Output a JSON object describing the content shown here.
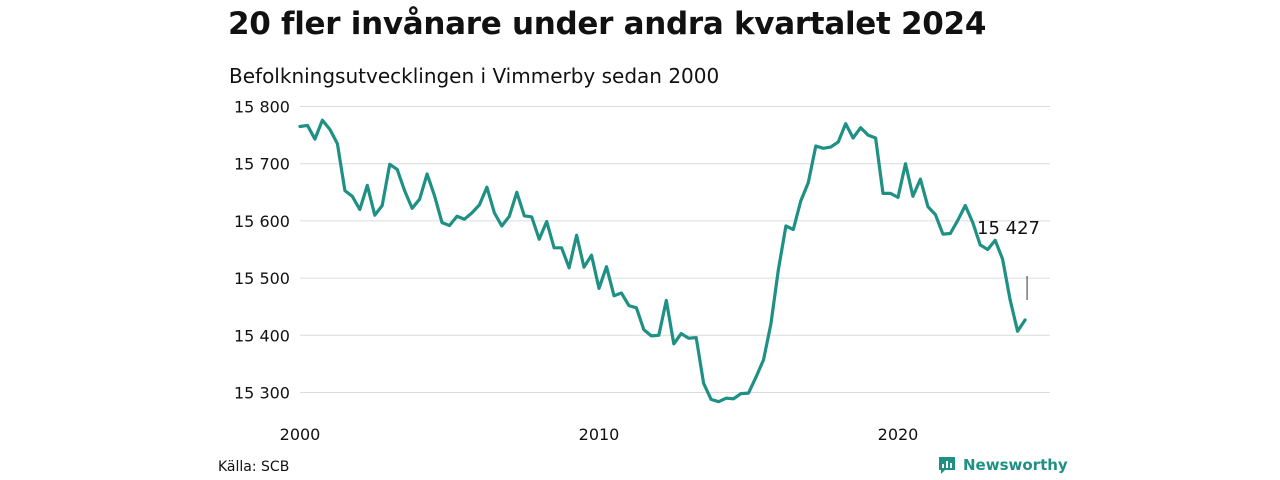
{
  "title": "20 fler invånare under andra kvartalet 2024",
  "subtitle": "Befolkningsutvecklingen i Vimmerby sedan 2000",
  "source": "Källa: SCB",
  "brand": {
    "name": "Newsworthy",
    "icon": "newsworthy-logo-icon",
    "color": "#1e9084"
  },
  "chart_data": {
    "type": "line",
    "title": "20 fler invånare under andra kvartalet 2024",
    "subtitle": "Befolkningsutvecklingen i Vimmerby sedan 2000",
    "xlabel": "",
    "ylabel": "",
    "xlim": [
      2000,
      2024.25
    ],
    "ylim": [
      15270,
      15800
    ],
    "y_ticks": [
      15300,
      15400,
      15500,
      15600,
      15700,
      15800
    ],
    "y_tick_labels": [
      "15 300",
      "15 400",
      "15 500",
      "15 600",
      "15 700",
      "15 800"
    ],
    "x_ticks": [
      2000,
      2010,
      2020
    ],
    "x_tick_labels": [
      "2000",
      "2010",
      "2020"
    ],
    "grid": true,
    "line_color": "#1e9084",
    "annotation": {
      "text": "15 427",
      "value": 15427
    },
    "series": [
      {
        "x": [
          2000,
          2000.25,
          2000.5,
          2000.75,
          2001,
          2001.25,
          2001.5,
          2001.75,
          2002,
          2002.25,
          2002.5,
          2002.75,
          2003,
          2003.25,
          2003.5,
          2003.75,
          2004,
          2004.25,
          2004.5,
          2004.75,
          2005,
          2005.25,
          2005.5,
          2005.75,
          2006,
          2006.25,
          2006.5,
          2006.75,
          2007,
          2007.25,
          2007.5,
          2007.75,
          2008,
          2008.25,
          2008.5,
          2008.75,
          2009,
          2009.25,
          2009.5,
          2009.75,
          2010,
          2010.25,
          2010.5,
          2010.75,
          2011,
          2011.25,
          2011.5,
          2011.75,
          2012,
          2012.25,
          2012.5,
          2012.75,
          2013,
          2013.25,
          2013.5,
          2013.75,
          2014,
          2014.25,
          2014.5,
          2014.75,
          2015,
          2015.25,
          2015.5,
          2015.75,
          2016,
          2016.25,
          2016.5,
          2016.75,
          2017,
          2017.25,
          2017.5,
          2017.75,
          2018,
          2018.25,
          2018.5,
          2018.75,
          2019,
          2019.25,
          2019.5,
          2019.75,
          2020,
          2020.25,
          2020.5,
          2020.75,
          2021,
          2021.25,
          2021.5,
          2021.75,
          2022,
          2022.25,
          2022.5,
          2022.75,
          2023,
          2023.25,
          2023.5,
          2023.75,
          2024,
          2024.25
        ],
        "y": [
          15765,
          15767,
          15743,
          15776,
          15760,
          15735,
          15653,
          15643,
          15620,
          15662,
          15610,
          15627,
          15699,
          15690,
          15653,
          15622,
          15638,
          15682,
          15644,
          15597,
          15592,
          15608,
          15603,
          15614,
          15628,
          15659,
          15614,
          15591,
          15608,
          15650,
          15609,
          15607,
          15568,
          15599,
          15553,
          15553,
          15518,
          15575,
          15519,
          15540,
          15482,
          15520,
          15469,
          15474,
          15452,
          15448,
          15410,
          15399,
          15400,
          15461,
          15385,
          15403,
          15395,
          15396,
          15316,
          15288,
          15284,
          15290,
          15289,
          15298,
          15299,
          15327,
          15357,
          15420,
          15515,
          15591,
          15585,
          15635,
          15667,
          15731,
          15727,
          15729,
          15738,
          15770,
          15745,
          15763,
          15750,
          15745,
          15648,
          15648,
          15641,
          15700,
          15643,
          15673,
          15625,
          15611,
          15577,
          15578,
          15601,
          15627,
          15597,
          15558,
          15550,
          15566,
          15533,
          15462,
          15407,
          15427
        ]
      }
    ]
  }
}
